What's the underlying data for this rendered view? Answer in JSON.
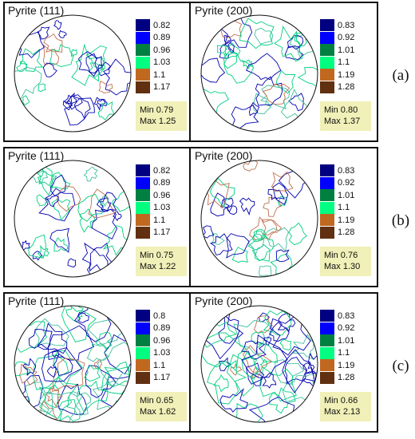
{
  "rows": [
    {
      "label": "(a)",
      "panels": [
        {
          "title": "Pyrite (111)",
          "min_label": "Min 0.79",
          "max_label": "Max 1.25",
          "levels": [
            "0.82",
            "0.89",
            "0.96",
            "1.03",
            "1.1",
            "1.17"
          ]
        },
        {
          "title": "Pyrite (200)",
          "min_label": "Min 0.80",
          "max_label": "Max 1.37",
          "levels": [
            "0.83",
            "0.92",
            "1.01",
            "1.1",
            "1.19",
            "1.28"
          ]
        }
      ]
    },
    {
      "label": "(b)",
      "panels": [
        {
          "title": "Pyrite (111)",
          "min_label": "Min 0.75",
          "max_label": "Max 1.22",
          "levels": [
            "0.82",
            "0.89",
            "0.96",
            "1.03",
            "1.1",
            "1.17"
          ]
        },
        {
          "title": "Pyrite (200)",
          "min_label": "Min 0.76",
          "max_label": "Max 1.30",
          "levels": [
            "0.83",
            "0.92",
            "1.01",
            "1.1",
            "1.19",
            "1.28"
          ]
        }
      ]
    },
    {
      "label": "(c)",
      "panels": [
        {
          "title": "Pyrite (111)",
          "min_label": "Min 0.65",
          "max_label": "Max 1.62",
          "levels": [
            "0.8",
            "0.89",
            "0.96",
            "1.03",
            "1.1",
            "1.17"
          ]
        },
        {
          "title": "Pyrite (200)",
          "min_label": "Min 0.66",
          "max_label": "Max 2.13",
          "levels": [
            "0.83",
            "0.92",
            "1.01",
            "1.1",
            "1.19",
            "1.28"
          ]
        }
      ]
    }
  ],
  "colors": {
    "legend": [
      "#000080",
      "#0000ff",
      "#008040",
      "#00ff80",
      "#c06820",
      "#603010"
    ],
    "contours": [
      "#0000b0",
      "#00d080",
      "#40c0a0",
      "#c07050"
    ],
    "stats_background": "#f0f0b8"
  }
}
